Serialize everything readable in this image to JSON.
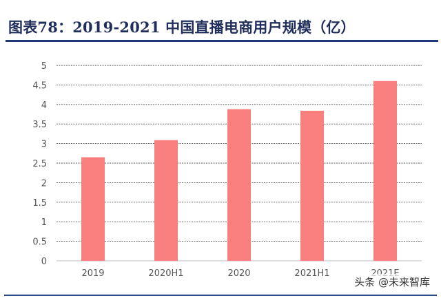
{
  "header": {
    "title": "图表78：2019-2021 中国直播电商用户规模（亿）"
  },
  "watermark": "头条 @未来智库",
  "colors": {
    "bar": "#fa8080",
    "title": "#1f2e5a",
    "rule": "#1f3a7a",
    "axis_text": "#555555"
  },
  "chart_data": {
    "type": "bar",
    "title": "2019-2021 中国直播电商用户规模（亿）",
    "categories": [
      "2019",
      "2020H1",
      "2020",
      "2021H1",
      "2021E"
    ],
    "values": [
      2.65,
      3.09,
      3.88,
      3.84,
      4.6
    ],
    "ylim": [
      0,
      5
    ],
    "yticks": [
      "0",
      "0.5",
      "1",
      "1.5",
      "2",
      "2.5",
      "3",
      "3.5",
      "4",
      "4.5",
      "5"
    ],
    "xlabel": "",
    "ylabel": "",
    "grid": true,
    "legend": "none"
  }
}
